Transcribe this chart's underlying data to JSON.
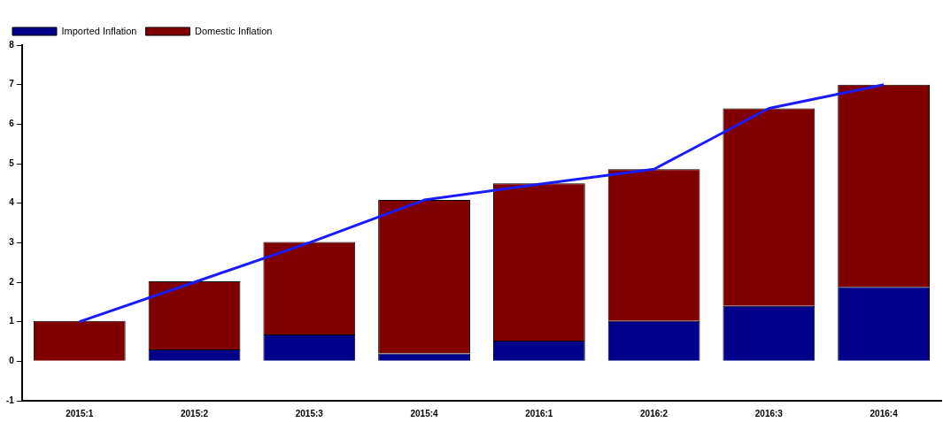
{
  "chart_data": {
    "type": "bar",
    "stacked": true,
    "categories": [
      "2015:1",
      "2015:2",
      "2015:3",
      "2015:4",
      "2016:1",
      "2016:2",
      "2016:3",
      "2016:4"
    ],
    "series": [
      {
        "name": "Imported Inflation",
        "color": "#00008b",
        "values": [
          0,
          0.3,
          0.68,
          0.2,
          0.52,
          1.02,
          1.4,
          1.88
        ]
      },
      {
        "name": "Domestic Inflation",
        "color": "#800000",
        "values": [
          1.02,
          1.72,
          2.34,
          3.88,
          3.98,
          3.84,
          5.0,
          5.12
        ]
      },
      {
        "type": "line",
        "color": "#1a1aff",
        "values": [
          1.0,
          2.0,
          3.0,
          4.08,
          4.48,
          4.86,
          6.4,
          7.0
        ]
      }
    ],
    "ylim": [
      -1,
      8
    ],
    "yticks": [
      -1,
      0,
      1,
      2,
      3,
      4,
      5,
      6,
      7,
      8
    ],
    "grid": false,
    "legend": "top left",
    "marker": "none"
  }
}
